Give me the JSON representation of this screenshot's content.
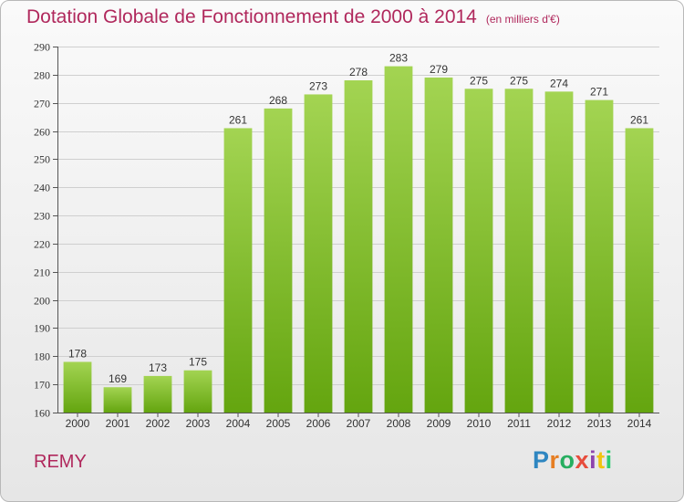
{
  "header": {
    "title": "Dotation Globale de Fonctionnement de 2000 à 2014",
    "unit": "(en milliers d'€)"
  },
  "commune": "REMY",
  "logo": {
    "text": "Proxiti",
    "letters": [
      {
        "char": "P",
        "color": "#2e86c1"
      },
      {
        "char": "r",
        "color": "#e67e22"
      },
      {
        "char": "o",
        "color": "#27ae60"
      },
      {
        "char": "x",
        "color": "#e74c3c"
      },
      {
        "char": "i",
        "color": "#8e44ad"
      },
      {
        "char": "t",
        "color": "#f1c40f"
      },
      {
        "char": "i",
        "color": "#2ecc71"
      }
    ]
  },
  "colors": {
    "title": "#b0285c",
    "bar_top": "#a3d452",
    "bar_bottom": "#64a50f",
    "grid": "#cfcfcf",
    "text": "#333333"
  },
  "chart_data": {
    "type": "bar",
    "categories": [
      "2000",
      "2001",
      "2002",
      "2003",
      "2004",
      "2005",
      "2006",
      "2007",
      "2008",
      "2009",
      "2010",
      "2011",
      "2012",
      "2013",
      "2014"
    ],
    "values": [
      178,
      169,
      173,
      175,
      261,
      268,
      273,
      278,
      283,
      279,
      275,
      275,
      274,
      271,
      261
    ],
    "ylim": [
      160,
      290
    ],
    "yticks": [
      160,
      170,
      180,
      190,
      200,
      210,
      220,
      230,
      240,
      250,
      260,
      270,
      280,
      290
    ],
    "grid": true,
    "data_labels": true
  }
}
